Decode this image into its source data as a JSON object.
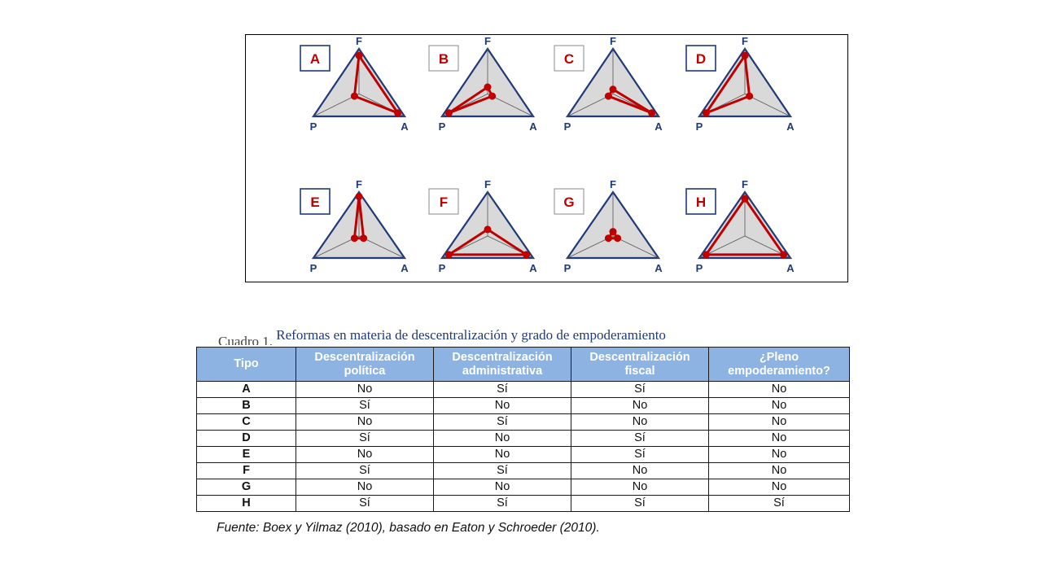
{
  "diagram": {
    "axis_labels": {
      "top": "F",
      "left": "P",
      "right": "A"
    },
    "colors": {
      "triangle_fill": "#d9d9d9",
      "triangle_stroke": "#1f3a78",
      "profile": "#c00000",
      "label_box": "#1f3a78"
    },
    "panels": [
      {
        "letter": "A",
        "label_boxed": true,
        "F": 0.85,
        "P": 0.1,
        "A": 0.85
      },
      {
        "letter": "B",
        "label_boxed": false,
        "F": 0.15,
        "P": 0.85,
        "A": 0.1
      },
      {
        "letter": "C",
        "label_boxed": false,
        "F": 0.1,
        "P": 0.1,
        "A": 0.85
      },
      {
        "letter": "D",
        "label_boxed": true,
        "F": 0.85,
        "P": 0.85,
        "A": 0.1
      },
      {
        "letter": "E",
        "label_boxed": true,
        "F": 0.9,
        "P": 0.1,
        "A": 0.1
      },
      {
        "letter": "F",
        "label_boxed": false,
        "F": 0.15,
        "P": 0.85,
        "A": 0.85
      },
      {
        "letter": "G",
        "label_boxed": false,
        "F": 0.1,
        "P": 0.1,
        "A": 0.1
      },
      {
        "letter": "H",
        "label_boxed": true,
        "F": 0.85,
        "P": 0.85,
        "A": 0.85
      }
    ]
  },
  "table": {
    "caption": "Reformas en materia de descentralización y grado de empoderamiento",
    "caption_prefix": "Cuadro 1.",
    "headers": [
      [
        "Tipo"
      ],
      [
        "Descentralización",
        "política"
      ],
      [
        "Descentralización",
        "administrativa"
      ],
      [
        "Descentralización",
        "fiscal"
      ],
      [
        "¿Pleno",
        "empoderamiento?"
      ]
    ],
    "rows": [
      [
        "A",
        "No",
        "Sí",
        "Sí",
        "No"
      ],
      [
        "B",
        "Sí",
        "No",
        "No",
        "No"
      ],
      [
        "C",
        "No",
        "Sí",
        "No",
        "No"
      ],
      [
        "D",
        "Sí",
        "No",
        "Sí",
        "No"
      ],
      [
        "E",
        "No",
        "No",
        "Sí",
        "No"
      ],
      [
        "F",
        "Sí",
        "Sí",
        "No",
        "No"
      ],
      [
        "G",
        "No",
        "No",
        "No",
        "No"
      ],
      [
        "H",
        "Sí",
        "Sí",
        "Sí",
        "Sí"
      ]
    ]
  },
  "source": "Fuente: Boex y Yilmaz (2010), basado en Eaton y Schroeder (2010)."
}
